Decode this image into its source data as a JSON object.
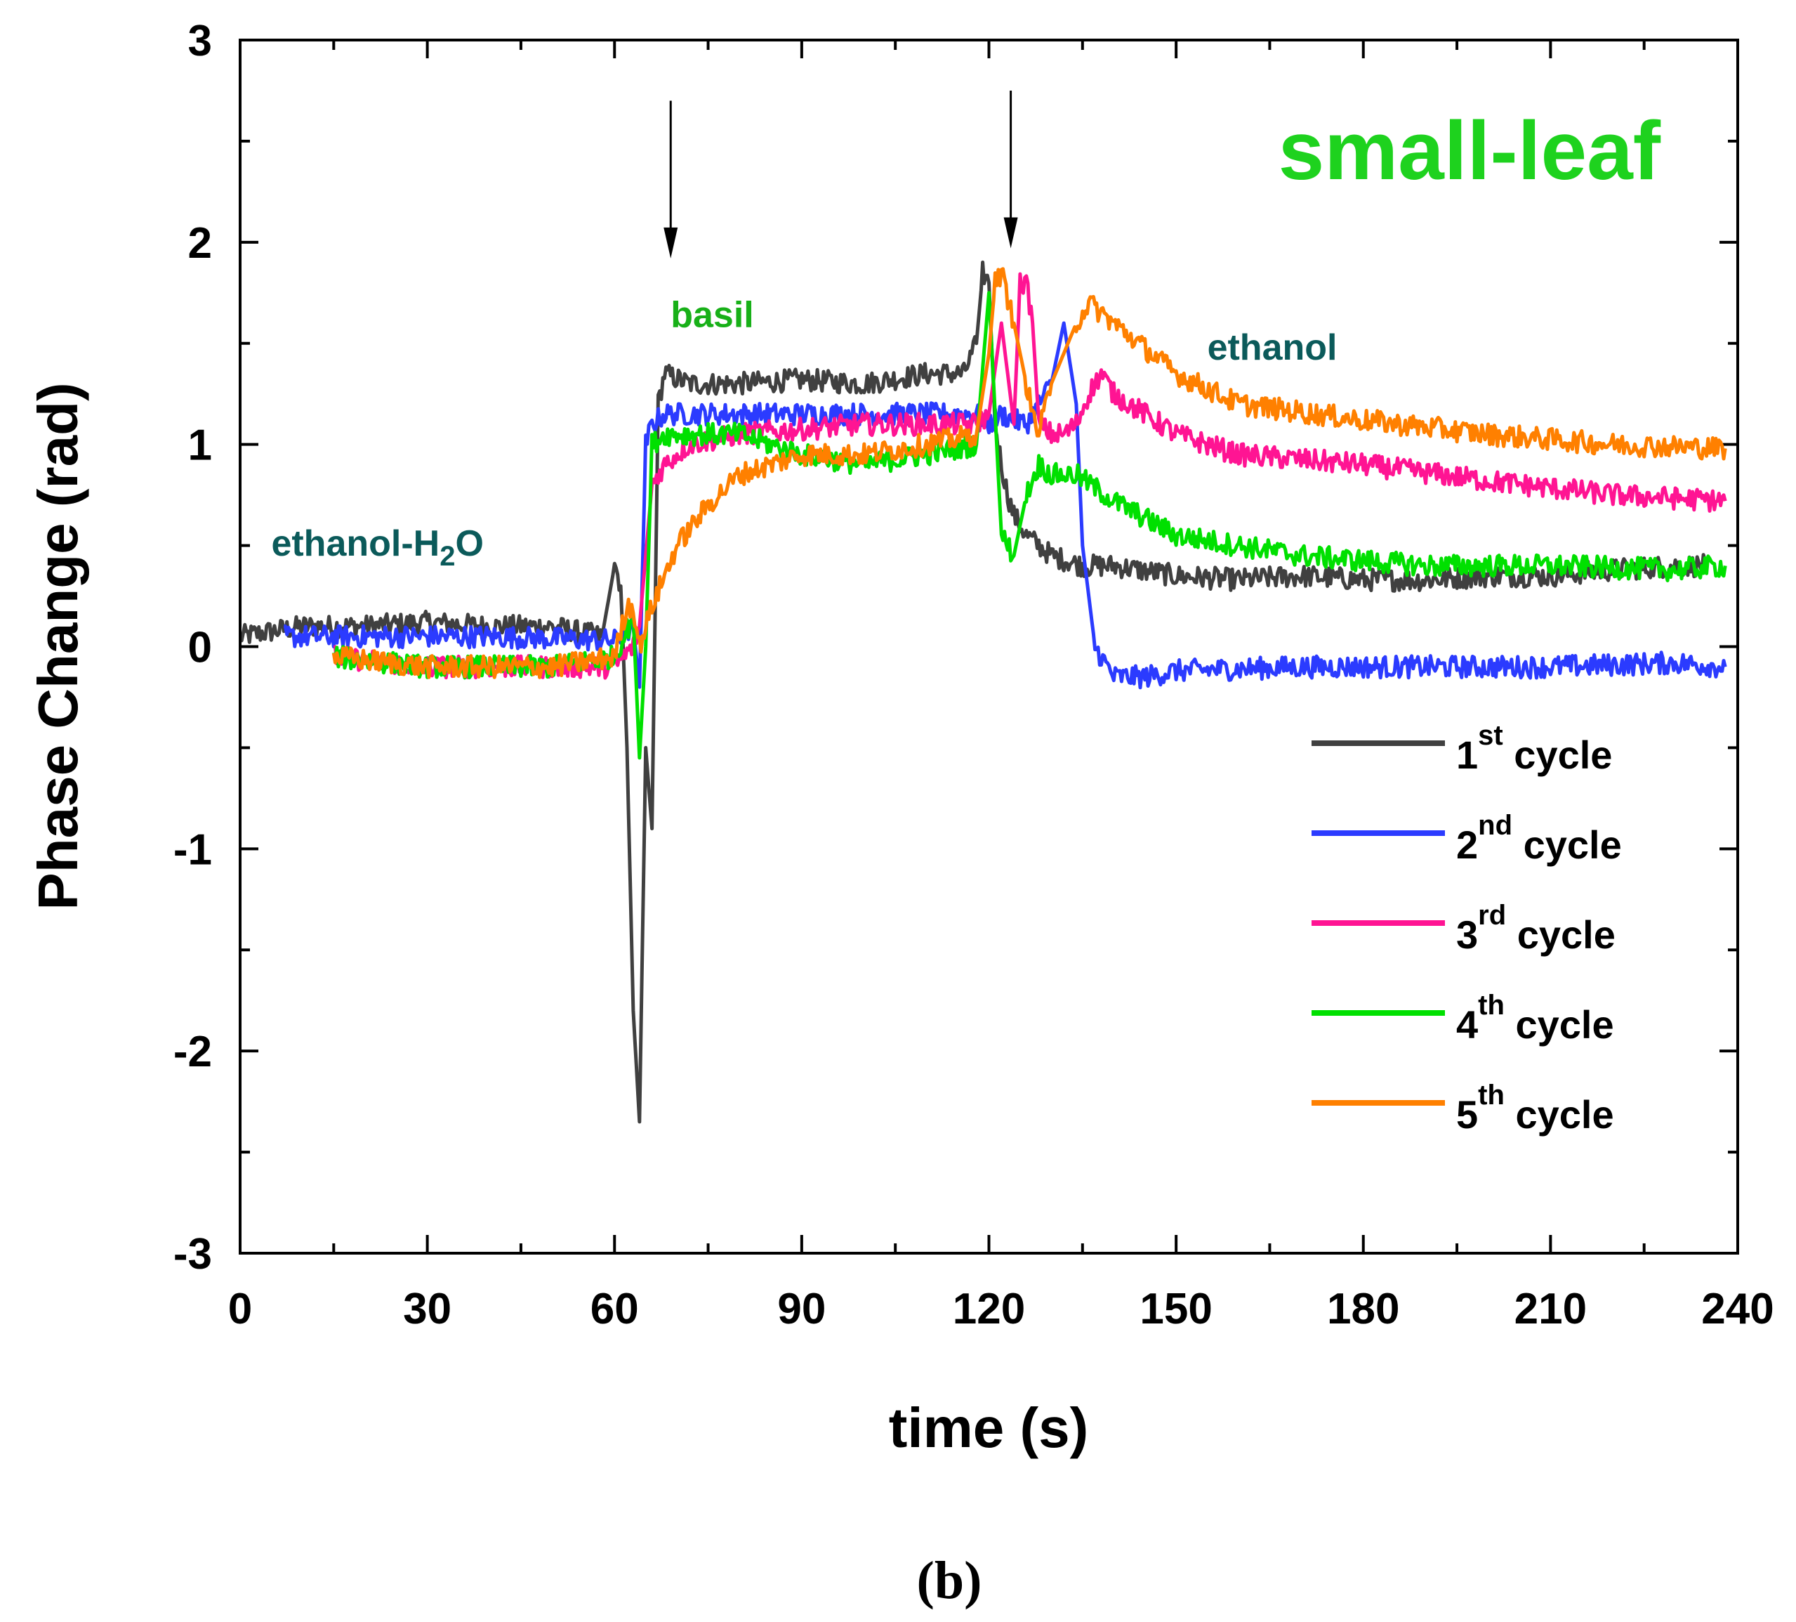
{
  "figure_label": "(b)",
  "colors": {
    "cycle1": "#404040",
    "cycle2": "#2b3bff",
    "cycle3": "#ff1493",
    "cycle4": "#00e000",
    "cycle5": "#ff8000",
    "title": "#1ed21e",
    "basil": "#18b018",
    "dark_teal": "#0b5a5a"
  },
  "chart_data": {
    "type": "line",
    "title": "small-leaf",
    "xlabel": "time (s)",
    "ylabel": "Phase Change (rad)",
    "xlim": [
      0,
      240
    ],
    "ylim": [
      -3,
      3
    ],
    "xticks": [
      0,
      30,
      60,
      90,
      120,
      150,
      180,
      210,
      240
    ],
    "yticks": [
      -3,
      -2,
      -1,
      0,
      1,
      2,
      3
    ],
    "annotations": [
      {
        "text": "ethanol-H",
        "sub": "2",
        "tail": "O",
        "x": 5,
        "y": 0.45,
        "color": "dark_teal"
      },
      {
        "text": "basil",
        "x": 69,
        "y": 1.58,
        "color": "basil"
      },
      {
        "text": "ethanol",
        "x": 155,
        "y": 1.42,
        "color": "dark_teal"
      }
    ],
    "arrows": [
      {
        "x": 69,
        "y_start": 2.7,
        "y_end": 1.92
      },
      {
        "x": 123.5,
        "y_start": 2.75,
        "y_end": 1.97
      }
    ],
    "series": [
      {
        "name": "1st cycle",
        "ordinal": "1",
        "sup": "st",
        "word": "cycle",
        "color": "cycle1",
        "x": [
          0,
          10,
          20,
          30,
          40,
          50,
          58,
          60,
          61,
          62,
          63,
          64,
          65,
          66,
          67,
          68,
          72,
          80,
          90,
          100,
          110,
          116,
          118,
          119,
          120,
          121,
          122,
          123,
          124,
          126,
          130,
          135,
          140,
          150,
          160,
          170,
          180,
          190,
          200,
          210,
          220,
          230,
          235
        ],
        "y": [
          0.05,
          0.1,
          0.1,
          0.12,
          0.1,
          0.1,
          0.05,
          0.4,
          0.3,
          -0.5,
          -1.8,
          -2.35,
          -0.5,
          -0.9,
          1.2,
          1.35,
          1.3,
          1.3,
          1.32,
          1.3,
          1.35,
          1.35,
          1.5,
          1.85,
          1.8,
          1.1,
          0.9,
          0.75,
          0.65,
          0.55,
          0.45,
          0.4,
          0.4,
          0.35,
          0.33,
          0.35,
          0.33,
          0.33,
          0.35,
          0.35,
          0.38,
          0.4,
          0.4
        ]
      },
      {
        "name": "2nd cycle",
        "ordinal": "2",
        "sup": "nd",
        "word": "cycle",
        "color": "cycle2",
        "x": [
          7,
          20,
          40,
          60,
          63,
          64,
          65,
          66,
          68,
          80,
          100,
          118,
          120,
          122,
          124,
          126,
          128,
          130,
          132,
          134,
          135,
          137,
          140,
          145,
          150,
          170,
          190,
          210,
          230,
          238
        ],
        "y": [
          0.05,
          0.05,
          0.05,
          0.03,
          0.1,
          -0.2,
          1.0,
          1.1,
          1.15,
          1.15,
          1.15,
          1.15,
          1.1,
          1.15,
          1.12,
          1.1,
          1.2,
          1.3,
          1.6,
          1.2,
          0.5,
          0.0,
          -0.15,
          -0.15,
          -0.12,
          -0.1,
          -0.1,
          -0.1,
          -0.08,
          -0.1
        ]
      },
      {
        "name": "3rd cycle",
        "ordinal": "3",
        "sup": "rd",
        "word": "cycle",
        "color": "cycle3",
        "x": [
          15,
          30,
          50,
          60,
          63,
          64,
          66,
          68,
          72,
          80,
          100,
          118,
          120,
          122,
          124,
          125,
          126,
          127,
          128,
          130,
          132,
          134,
          136,
          138,
          140,
          150,
          160,
          180,
          200,
          220,
          238
        ],
        "y": [
          -0.05,
          -0.1,
          -0.1,
          -0.1,
          0.0,
          0.1,
          0.8,
          0.9,
          1.0,
          1.05,
          1.1,
          1.1,
          1.15,
          1.6,
          1.1,
          1.8,
          1.8,
          1.6,
          1.1,
          1.05,
          1.05,
          1.1,
          1.25,
          1.35,
          1.25,
          1.05,
          0.95,
          0.9,
          0.82,
          0.75,
          0.72
        ]
      },
      {
        "name": "4th cycle",
        "ordinal": "4",
        "sup": "th",
        "word": "cycle",
        "color": "cycle4",
        "x": [
          15,
          30,
          50,
          60,
          63,
          64,
          65,
          66,
          68,
          80,
          90,
          100,
          110,
          118,
          120,
          122,
          124,
          126,
          128,
          130,
          134,
          140,
          150,
          170,
          190,
          210,
          230,
          238
        ],
        "y": [
          -0.05,
          -0.1,
          -0.1,
          -0.05,
          0.15,
          -0.55,
          0.0,
          1.0,
          1.05,
          1.05,
          0.95,
          0.9,
          0.95,
          1.0,
          1.75,
          0.55,
          0.45,
          0.75,
          0.9,
          0.85,
          0.85,
          0.72,
          0.55,
          0.45,
          0.4,
          0.4,
          0.38,
          0.4
        ]
      },
      {
        "name": "5th cycle",
        "ordinal": "5",
        "sup": "th",
        "word": "cycle",
        "color": "cycle5",
        "x": [
          15,
          30,
          50,
          60,
          62,
          63,
          64,
          66,
          68,
          70,
          75,
          80,
          90,
          100,
          110,
          118,
          120,
          121,
          122,
          124,
          126,
          127,
          128,
          130,
          134,
          136,
          140,
          150,
          160,
          180,
          200,
          220,
          238
        ],
        "y": [
          -0.05,
          -0.1,
          -0.1,
          -0.05,
          0.2,
          0.2,
          0.0,
          0.2,
          0.35,
          0.5,
          0.7,
          0.85,
          0.95,
          0.95,
          1.0,
          1.05,
          1.45,
          1.8,
          1.85,
          1.6,
          1.3,
          1.15,
          1.05,
          1.3,
          1.6,
          1.7,
          1.6,
          1.35,
          1.2,
          1.12,
          1.05,
          1.0,
          0.98
        ]
      }
    ]
  }
}
